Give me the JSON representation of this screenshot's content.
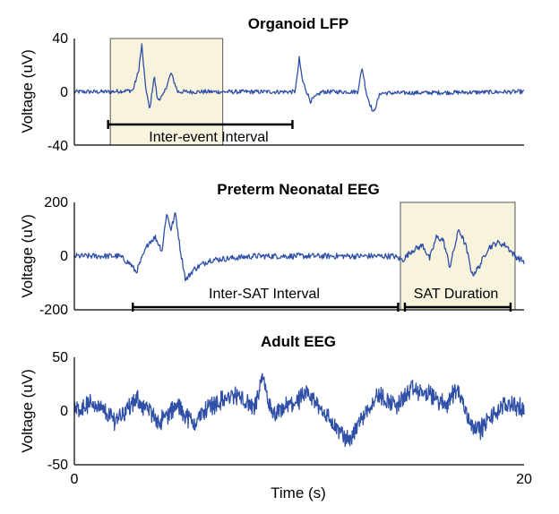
{
  "colors": {
    "trace": "#3050a8",
    "shade": "#f8f3dc",
    "axis": "#000000"
  },
  "chart_data": [
    {
      "type": "line",
      "title": "Organoid LFP",
      "ylabel": "Voltage (uV)",
      "xlim": [
        0,
        20
      ],
      "ylim": [
        -40,
        40
      ],
      "yticks": [
        "40",
        "0",
        "-40"
      ],
      "series": [
        {
          "values": [
            {
              "x": 0,
              "y": 0
            },
            {
              "x": 1.5,
              "y": 0
            },
            {
              "x": 2.6,
              "y": 1
            },
            {
              "x": 2.85,
              "y": 15
            },
            {
              "x": 3.0,
              "y": 35
            },
            {
              "x": 3.15,
              "y": 6
            },
            {
              "x": 3.35,
              "y": -14
            },
            {
              "x": 3.55,
              "y": 12
            },
            {
              "x": 3.7,
              "y": -6
            },
            {
              "x": 3.95,
              "y": -3
            },
            {
              "x": 4.3,
              "y": 14
            },
            {
              "x": 4.6,
              "y": 0
            },
            {
              "x": 6,
              "y": 0
            },
            {
              "x": 9.8,
              "y": 0
            },
            {
              "x": 9.9,
              "y": 10
            },
            {
              "x": 10.0,
              "y": 25
            },
            {
              "x": 10.15,
              "y": 8
            },
            {
              "x": 10.5,
              "y": -7
            },
            {
              "x": 11.0,
              "y": 0
            },
            {
              "x": 12.6,
              "y": 0
            },
            {
              "x": 12.8,
              "y": 18
            },
            {
              "x": 13.0,
              "y": -2
            },
            {
              "x": 13.3,
              "y": -16
            },
            {
              "x": 13.6,
              "y": -1
            },
            {
              "x": 20,
              "y": 0
            }
          ]
        }
      ],
      "annotations": [
        {
          "type": "shaded",
          "x": [
            1.6,
            6.6
          ],
          "label": ""
        },
        {
          "type": "bracket",
          "x": [
            1.5,
            9.7
          ],
          "label": "Inter-event Interval"
        }
      ]
    },
    {
      "type": "line",
      "title": "Preterm Neonatal EEG",
      "ylabel": "Voltage (uV)",
      "xlim": [
        0,
        20
      ],
      "ylim": [
        -200,
        200
      ],
      "yticks": [
        "200",
        "0",
        "-200"
      ],
      "series": [
        {
          "values": [
            {
              "x": 0,
              "y": 0
            },
            {
              "x": 2.0,
              "y": 0
            },
            {
              "x": 2.5,
              "y": -30
            },
            {
              "x": 2.75,
              "y": -60
            },
            {
              "x": 3.0,
              "y": -10
            },
            {
              "x": 3.3,
              "y": 50
            },
            {
              "x": 3.6,
              "y": 70
            },
            {
              "x": 3.9,
              "y": 20
            },
            {
              "x": 4.1,
              "y": 160
            },
            {
              "x": 4.3,
              "y": 100
            },
            {
              "x": 4.5,
              "y": 160
            },
            {
              "x": 4.7,
              "y": 30
            },
            {
              "x": 4.95,
              "y": -90
            },
            {
              "x": 5.3,
              "y": -50
            },
            {
              "x": 6.0,
              "y": -15
            },
            {
              "x": 8.0,
              "y": 0
            },
            {
              "x": 14.2,
              "y": 0
            },
            {
              "x": 14.6,
              "y": -15
            },
            {
              "x": 15.0,
              "y": 20
            },
            {
              "x": 15.5,
              "y": 40
            },
            {
              "x": 15.8,
              "y": -10
            },
            {
              "x": 16.1,
              "y": 70
            },
            {
              "x": 16.4,
              "y": 60
            },
            {
              "x": 16.7,
              "y": -40
            },
            {
              "x": 17.1,
              "y": 100
            },
            {
              "x": 17.4,
              "y": 40
            },
            {
              "x": 17.7,
              "y": -70
            },
            {
              "x": 18.0,
              "y": -40
            },
            {
              "x": 18.4,
              "y": 30
            },
            {
              "x": 18.8,
              "y": 50
            },
            {
              "x": 19.2,
              "y": 40
            },
            {
              "x": 19.6,
              "y": 0
            },
            {
              "x": 20,
              "y": -20
            }
          ]
        }
      ],
      "annotations": [
        {
          "type": "shaded",
          "x": [
            14.5,
            19.6
          ],
          "label": ""
        },
        {
          "type": "bracket",
          "x": [
            2.6,
            14.4
          ],
          "label": "Inter-SAT Interval"
        },
        {
          "type": "bracket",
          "x": [
            14.7,
            19.4
          ],
          "label": "SAT Duration"
        }
      ]
    },
    {
      "type": "line",
      "title": "Adult EEG",
      "xlabel": "Time (s)",
      "ylabel": "Voltage (uV)",
      "xlim": [
        0,
        20
      ],
      "ylim": [
        -50,
        50
      ],
      "yticks": [
        "50",
        "0",
        "-50"
      ],
      "xticks": [
        "0",
        "20"
      ],
      "series": [
        {
          "values": [
            {
              "x": 0,
              "y": 0
            },
            {
              "x": 0.8,
              "y": 8
            },
            {
              "x": 1.8,
              "y": -8
            },
            {
              "x": 2.8,
              "y": 10
            },
            {
              "x": 3.8,
              "y": -10
            },
            {
              "x": 4.6,
              "y": 5
            },
            {
              "x": 5.3,
              "y": -12
            },
            {
              "x": 6.0,
              "y": 5
            },
            {
              "x": 7.2,
              "y": 15
            },
            {
              "x": 8.0,
              "y": 2
            },
            {
              "x": 8.4,
              "y": 30
            },
            {
              "x": 8.8,
              "y": -6
            },
            {
              "x": 9.5,
              "y": 5
            },
            {
              "x": 10.4,
              "y": 15
            },
            {
              "x": 11.0,
              "y": 2
            },
            {
              "x": 11.6,
              "y": -15
            },
            {
              "x": 12.2,
              "y": -28
            },
            {
              "x": 12.8,
              "y": -5
            },
            {
              "x": 13.5,
              "y": 15
            },
            {
              "x": 14.3,
              "y": 5
            },
            {
              "x": 15.0,
              "y": 20
            },
            {
              "x": 15.8,
              "y": 15
            },
            {
              "x": 16.5,
              "y": 5
            },
            {
              "x": 17.0,
              "y": 22
            },
            {
              "x": 17.6,
              "y": -10
            },
            {
              "x": 18.0,
              "y": -18
            },
            {
              "x": 18.8,
              "y": 0
            },
            {
              "x": 19.4,
              "y": 8
            },
            {
              "x": 20,
              "y": 0
            }
          ]
        }
      ],
      "annotations": []
    }
  ]
}
